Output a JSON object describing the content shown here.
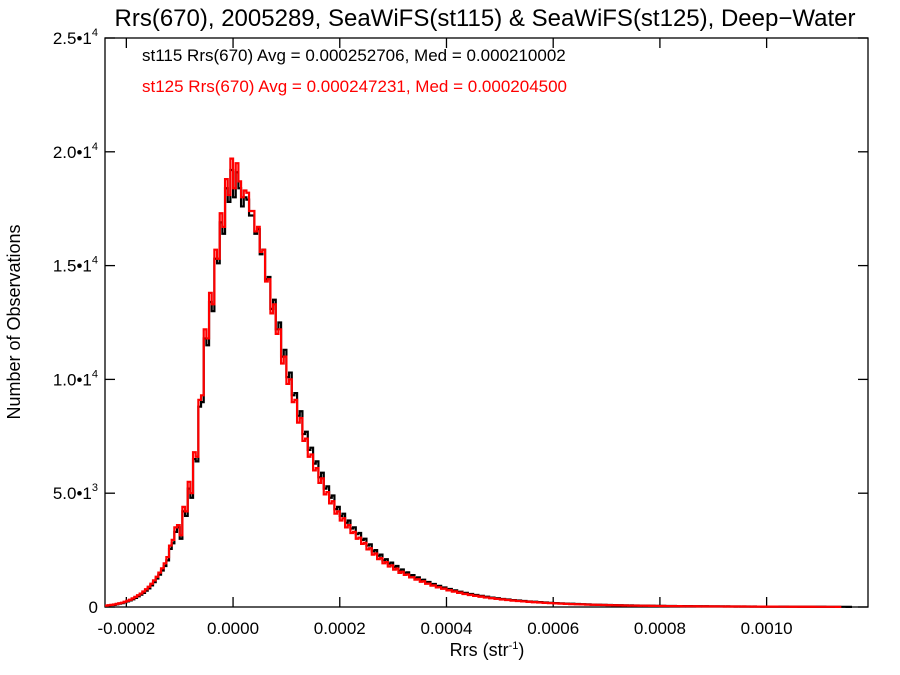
{
  "chart_data": {
    "type": "line",
    "title": "Rrs(670), 2005289, SeaWiFS(st115) & SeaWiFS(st125), Deep−Water",
    "xlabel": "Rrs (str",
    "xlabel_sup": "-1",
    "xlabel_close": ")",
    "ylabel": "Number of Observations",
    "xlim": [
      -0.00024,
      0.00119
    ],
    "ylim": [
      0,
      25000
    ],
    "x_ticks": [
      {
        "value": -0.0002,
        "label": "-0.0002"
      },
      {
        "value": 0.0,
        "label": "0.0000"
      },
      {
        "value": 0.0002,
        "label": "0.0002"
      },
      {
        "value": 0.0004,
        "label": "0.0004"
      },
      {
        "value": 0.0006,
        "label": "0.0006"
      },
      {
        "value": 0.0008,
        "label": "0.0008"
      },
      {
        "value": 0.001,
        "label": "0.0010"
      }
    ],
    "y_ticks": [
      {
        "value": 0,
        "base": "0",
        "exp": ""
      },
      {
        "value": 5000,
        "base": "5.0•1",
        "exp": "3"
      },
      {
        "value": 10000,
        "base": "1.0•1",
        "exp": "4"
      },
      {
        "value": 15000,
        "base": "1.5•1",
        "exp": "4"
      },
      {
        "value": 20000,
        "base": "2.0•1",
        "exp": "4"
      },
      {
        "value": 25000,
        "base": "2.5•1",
        "exp": "4"
      }
    ],
    "annotations": [
      {
        "text": "st115 Rrs(670) Avg = 0.000252706, Med = 0.000210002",
        "color": "#000000"
      },
      {
        "text": "st125 Rrs(670) Avg = 0.000247231, Med = 0.000204500",
        "color": "#ff0000"
      }
    ],
    "series": [
      {
        "color": "#000000",
        "x_start": -0.00024,
        "bin_width": 5e-06,
        "values": [
          50,
          68,
          85,
          95,
          120,
          145,
          170,
          205,
          245,
          290,
          340,
          400,
          470,
          540,
          620,
          720,
          820,
          950,
          1090,
          1250,
          1420,
          1600,
          1800,
          2050,
          2550,
          2800,
          3300,
          3500,
          3000,
          4200,
          4000,
          5200,
          4800,
          6500,
          6400,
          8800,
          9000,
          11800,
          11500,
          13400,
          13000,
          15300,
          15100,
          16900,
          16400,
          18400,
          17800,
          19200,
          18000,
          19100,
          18400,
          17600,
          18000,
          17900,
          17200,
          17200,
          16400,
          16600,
          15500,
          15700,
          14400,
          14500,
          13100,
          13500,
          12200,
          12500,
          11000,
          11300,
          10100,
          10300,
          9300,
          9400,
          8400,
          8600,
          7600,
          7700,
          6900,
          7000,
          6300,
          6400,
          5700,
          5900,
          5200,
          5300,
          4800,
          4900,
          4300,
          4400,
          4000,
          4100,
          3700,
          3800,
          3450,
          3500,
          3200,
          3250,
          2950,
          3000,
          2700,
          2750,
          2450,
          2500,
          2250,
          2300,
          2050,
          2100,
          1900,
          1950,
          1750,
          1800,
          1600,
          1650,
          1500,
          1520,
          1390,
          1400,
          1280,
          1300,
          1180,
          1200,
          1090,
          1100,
          1000,
          1010,
          920,
          930,
          850,
          860,
          780,
          790,
          720,
          730,
          660,
          670,
          610,
          620,
          560,
          570,
          520,
          530,
          480,
          490,
          445,
          450,
          410,
          415,
          380,
          385,
          350,
          355,
          325,
          330,
          300,
          305,
          280,
          285,
          260,
          265,
          240,
          245,
          225,
          230,
          210,
          215,
          195,
          200,
          180,
          185,
          170,
          172,
          160,
          162,
          150,
          152,
          140,
          142,
          130,
          132,
          122,
          124,
          114,
          116,
          106,
          108,
          100,
          102,
          94,
          96,
          88,
          90,
          82,
          84,
          77,
          79,
          72,
          74,
          68,
          70,
          64,
          66,
          60,
          62,
          57,
          59,
          54,
          56,
          50,
          52,
          48,
          49,
          45,
          46,
          43,
          44,
          40,
          42,
          38,
          40,
          36,
          38,
          34,
          36,
          32,
          34,
          31,
          32,
          29,
          30,
          28,
          29,
          26,
          27,
          25,
          26,
          24,
          25,
          23,
          24,
          22,
          23,
          21,
          22,
          20,
          21,
          19,
          20,
          18,
          19,
          17,
          18,
          16,
          17,
          16,
          16,
          15,
          15,
          14,
          14,
          13,
          13,
          12,
          12,
          12,
          12,
          11,
          11,
          10,
          10,
          10,
          10,
          9,
          9,
          9,
          9,
          8,
          8,
          8,
          8,
          7,
          7
        ]
      },
      {
        "color": "#ff0000",
        "x_start": -0.00024,
        "bin_width": 5e-06,
        "values": [
          60,
          78,
          95,
          110,
          138,
          165,
          190,
          230,
          275,
          320,
          380,
          445,
          515,
          590,
          680,
          780,
          890,
          1020,
          1170,
          1330,
          1510,
          1700,
          1920,
          2190,
          2700,
          2950,
          3500,
          3600,
          3150,
          4400,
          4200,
          5500,
          5000,
          6800,
          6600,
          9100,
          9300,
          12200,
          11800,
          13800,
          13300,
          15700,
          15300,
          17300,
          16700,
          18800,
          18100,
          19700,
          18400,
          19500,
          18700,
          18000,
          18300,
          18200,
          17400,
          17400,
          16500,
          16700,
          15600,
          15700,
          14300,
          14400,
          12900,
          13300,
          12000,
          12200,
          10700,
          11000,
          9800,
          10000,
          9000,
          9100,
          8100,
          8300,
          7300,
          7400,
          6600,
          6700,
          6000,
          6100,
          5450,
          5650,
          4950,
          5050,
          4550,
          4650,
          4100,
          4200,
          3800,
          3900,
          3500,
          3600,
          3250,
          3300,
          3000,
          3050,
          2770,
          2820,
          2530,
          2580,
          2300,
          2350,
          2100,
          2150,
          1920,
          1970,
          1780,
          1830,
          1640,
          1690,
          1500,
          1550,
          1410,
          1430,
          1300,
          1310,
          1200,
          1220,
          1110,
          1130,
          1020,
          1030,
          940,
          950,
          860,
          870,
          800,
          810,
          730,
          740,
          675,
          685,
          620,
          630,
          570,
          580,
          525,
          535,
          485,
          495,
          450,
          460,
          415,
          420,
          385,
          390,
          355,
          360,
          330,
          335,
          305,
          310,
          280,
          285,
          260,
          265,
          245,
          250,
          225,
          230,
          210,
          215,
          195,
          200,
          182,
          185,
          170,
          172,
          158,
          160,
          148,
          150,
          138,
          140,
          128,
          130,
          120,
          122,
          112,
          114,
          104,
          106,
          98,
          100,
          92,
          94,
          86,
          88,
          80,
          82,
          75,
          77,
          70,
          72,
          66,
          68,
          62,
          64,
          58,
          60,
          55,
          57,
          52,
          54,
          48,
          50,
          46,
          47,
          43,
          44,
          41,
          42,
          38,
          40,
          36,
          38,
          34,
          36,
          32,
          34,
          31,
          32,
          29,
          30,
          28,
          29,
          26,
          27,
          25,
          26,
          24,
          25,
          23,
          24,
          22,
          23,
          21,
          22,
          20,
          21,
          19,
          20,
          18,
          19,
          17,
          18,
          16,
          17,
          16,
          16,
          15,
          15,
          14,
          14,
          13,
          13,
          12,
          12,
          12,
          12,
          11,
          11,
          10,
          10,
          10,
          10,
          9,
          9,
          9,
          9,
          8,
          8,
          8,
          8,
          7,
          7
        ]
      }
    ]
  }
}
